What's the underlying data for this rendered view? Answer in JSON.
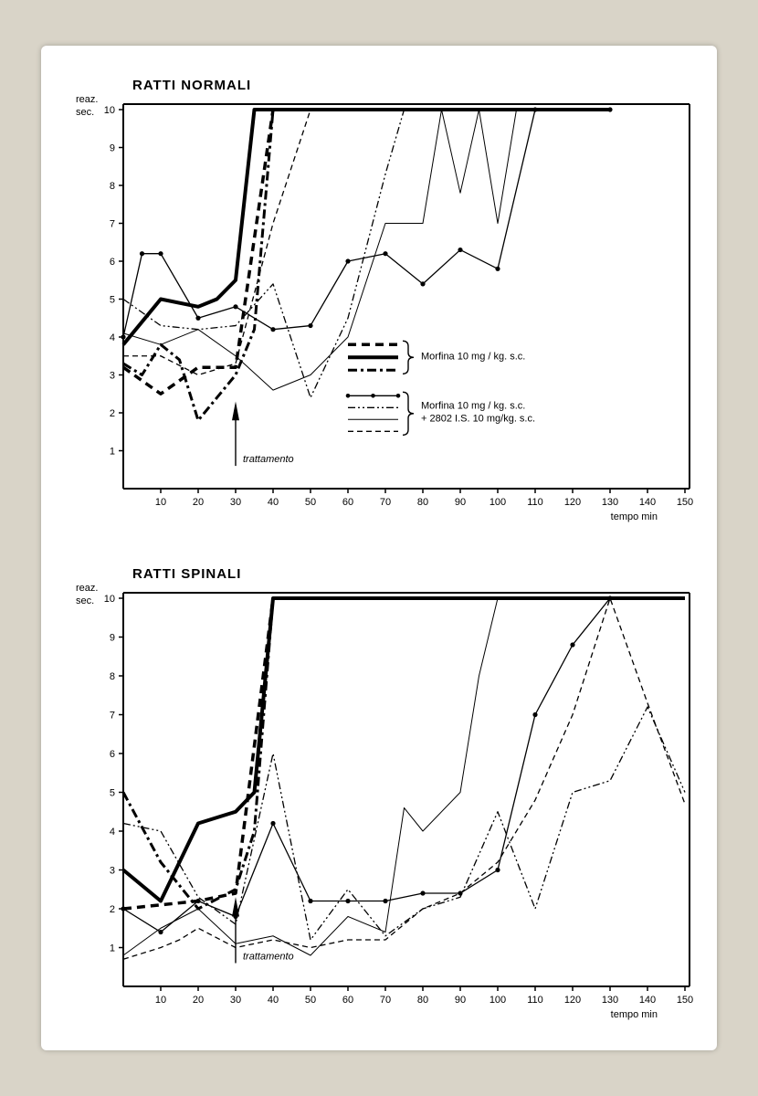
{
  "page": {
    "background_outer": "#d9d4c8",
    "background_inner": "#ffffff"
  },
  "charts": [
    {
      "key": "top",
      "title": "RATTI  NORMALI",
      "y_label1": "reaz.",
      "y_label2": "sec.",
      "x_label": "tempo min",
      "treatment_label": "trattamento",
      "xlim": [
        0,
        150
      ],
      "ylim": [
        0,
        10
      ],
      "xticks": [
        10,
        20,
        30,
        40,
        50,
        60,
        70,
        80,
        90,
        100,
        110,
        120,
        130,
        140,
        150
      ],
      "yticks": [
        1,
        2,
        3,
        4,
        5,
        6,
        7,
        8,
        9,
        10
      ],
      "treatment_x": 30,
      "title_fontsize": 15,
      "label_fontsize": 11,
      "tick_fontsize": 11,
      "axis_color": "#000000",
      "series": [
        {
          "name": "morfina-dashed-thick",
          "color": "#000",
          "width": 3.5,
          "dash": "9,6",
          "markers": false,
          "x": [
            0,
            10,
            20,
            30,
            40,
            50
          ],
          "y": [
            3.2,
            2.5,
            3.2,
            3.2,
            10,
            10
          ]
        },
        {
          "name": "morfina-solid-thick",
          "color": "#000",
          "width": 4,
          "dash": "",
          "markers": false,
          "x": [
            0,
            10,
            20,
            25,
            30,
            35,
            40,
            130
          ],
          "y": [
            3.8,
            5.0,
            4.8,
            5.0,
            5.5,
            10,
            10,
            10
          ]
        },
        {
          "name": "morfina-dashdot-thick",
          "color": "#000",
          "width": 3,
          "dash": "10,4,3,4",
          "markers": false,
          "x": [
            0,
            5,
            10,
            15,
            20,
            30,
            35,
            40,
            45
          ],
          "y": [
            3.3,
            3.0,
            3.8,
            3.4,
            1.8,
            3.0,
            4.2,
            10,
            10
          ]
        },
        {
          "name": "combo-solid-dot",
          "color": "#000",
          "width": 1.3,
          "dash": "",
          "markers": true,
          "x": [
            0,
            5,
            10,
            20,
            30,
            40,
            50,
            60,
            70,
            80,
            90,
            100,
            110,
            130
          ],
          "y": [
            4.0,
            6.2,
            6.2,
            4.5,
            4.8,
            4.2,
            4.3,
            6.0,
            6.2,
            5.4,
            6.3,
            5.8,
            10,
            10
          ]
        },
        {
          "name": "combo-dashdotdot",
          "color": "#000",
          "width": 1.3,
          "dash": "8,3,2,3,2,3",
          "markers": false,
          "x": [
            0,
            10,
            20,
            30,
            40,
            50,
            60,
            70,
            75
          ],
          "y": [
            5.0,
            4.3,
            4.2,
            4.3,
            5.4,
            2.4,
            4.5,
            8.3,
            10
          ]
        },
        {
          "name": "combo-thin-solid",
          "color": "#000",
          "width": 1,
          "dash": "",
          "markers": false,
          "x": [
            0,
            10,
            20,
            30,
            40,
            50,
            60,
            70,
            80,
            85,
            90,
            95,
            100,
            105
          ],
          "y": [
            4.1,
            3.8,
            4.2,
            3.5,
            2.6,
            3.0,
            4.0,
            7.0,
            7.0,
            10,
            7.8,
            10,
            7.0,
            10
          ]
        },
        {
          "name": "combo-dashed-thin",
          "color": "#000",
          "width": 1.3,
          "dash": "6,4",
          "markers": false,
          "x": [
            0,
            10,
            20,
            30,
            40,
            50
          ],
          "y": [
            3.5,
            3.5,
            3.0,
            3.3,
            7.0,
            10
          ]
        }
      ],
      "legend": {
        "x": 60,
        "y_start": 3.8,
        "group1_label": "Morfina 10 mg / kg. s.c.",
        "group2_label1": "Morfina 10 mg / kg. s.c.",
        "group2_label2": "+ 2802 I.S. 10 mg/kg. s.c.",
        "fontsize": 11
      }
    },
    {
      "key": "bottom",
      "title": "RATTI  SPINALI",
      "y_label1": "reaz.",
      "y_label2": "sec.",
      "x_label": "tempo min",
      "treatment_label": "trattamento",
      "xlim": [
        0,
        150
      ],
      "ylim": [
        0,
        10
      ],
      "xticks": [
        10,
        20,
        30,
        40,
        50,
        60,
        70,
        80,
        90,
        100,
        110,
        120,
        130,
        140,
        150
      ],
      "yticks": [
        1,
        2,
        3,
        4,
        5,
        6,
        7,
        8,
        9,
        10
      ],
      "treatment_x": 30,
      "title_fontsize": 15,
      "label_fontsize": 11,
      "tick_fontsize": 11,
      "axis_color": "#000000",
      "series": [
        {
          "name": "morfina-solid-thick",
          "color": "#000",
          "width": 4,
          "dash": "",
          "markers": false,
          "x": [
            0,
            10,
            15,
            20,
            30,
            35,
            40,
            150
          ],
          "y": [
            3.0,
            2.2,
            3.2,
            4.2,
            4.5,
            5.0,
            10,
            10
          ]
        },
        {
          "name": "morfina-dashed-thick",
          "color": "#000",
          "width": 3.5,
          "dash": "9,6",
          "markers": false,
          "x": [
            0,
            10,
            20,
            30,
            40,
            150
          ],
          "y": [
            2.0,
            2.1,
            2.2,
            2.4,
            10,
            10
          ]
        },
        {
          "name": "morfina-dashdot-thick",
          "color": "#000",
          "width": 3,
          "dash": "10,4,3,4",
          "markers": false,
          "x": [
            0,
            10,
            20,
            30,
            35,
            40
          ],
          "y": [
            5.0,
            3.2,
            2.0,
            2.5,
            4.0,
            10
          ]
        },
        {
          "name": "combo-solid-dot",
          "color": "#000",
          "width": 1.3,
          "dash": "",
          "markers": true,
          "x": [
            0,
            10,
            20,
            30,
            40,
            50,
            60,
            70,
            80,
            90,
            100,
            110,
            120,
            130
          ],
          "y": [
            2.0,
            1.4,
            2.2,
            1.8,
            4.2,
            2.2,
            2.2,
            2.2,
            2.4,
            2.4,
            3.0,
            7.0,
            8.8,
            10
          ]
        },
        {
          "name": "combo-thin-solid",
          "color": "#000",
          "width": 1,
          "dash": "",
          "markers": false,
          "x": [
            0,
            10,
            20,
            30,
            40,
            50,
            60,
            70,
            75,
            80,
            90,
            95,
            100,
            110
          ],
          "y": [
            0.8,
            1.5,
            2.0,
            1.1,
            1.3,
            0.8,
            1.8,
            1.4,
            4.6,
            4.0,
            5.0,
            8.0,
            10,
            10
          ]
        },
        {
          "name": "combo-dashdotdot",
          "color": "#000",
          "width": 1.3,
          "dash": "8,3,2,3,2,3",
          "markers": false,
          "x": [
            0,
            10,
            20,
            30,
            40,
            50,
            60,
            70,
            80,
            90,
            100,
            110,
            120,
            130,
            140,
            150
          ],
          "y": [
            4.2,
            4.0,
            2.3,
            1.6,
            6.0,
            1.2,
            2.5,
            1.3,
            2.0,
            2.3,
            4.5,
            2.0,
            5.0,
            5.3,
            7.2,
            5.0
          ]
        },
        {
          "name": "combo-dashed-thin",
          "color": "#000",
          "width": 1.3,
          "dash": "6,4",
          "markers": false,
          "x": [
            0,
            10,
            15,
            20,
            30,
            40,
            50,
            60,
            70,
            80,
            90,
            100,
            110,
            120,
            130,
            140,
            150
          ],
          "y": [
            0.7,
            1.0,
            1.2,
            1.5,
            1.0,
            1.2,
            1.0,
            1.2,
            1.2,
            2.0,
            2.4,
            3.2,
            4.8,
            7.0,
            10,
            7.3,
            4.7
          ]
        }
      ],
      "legend": null
    }
  ]
}
